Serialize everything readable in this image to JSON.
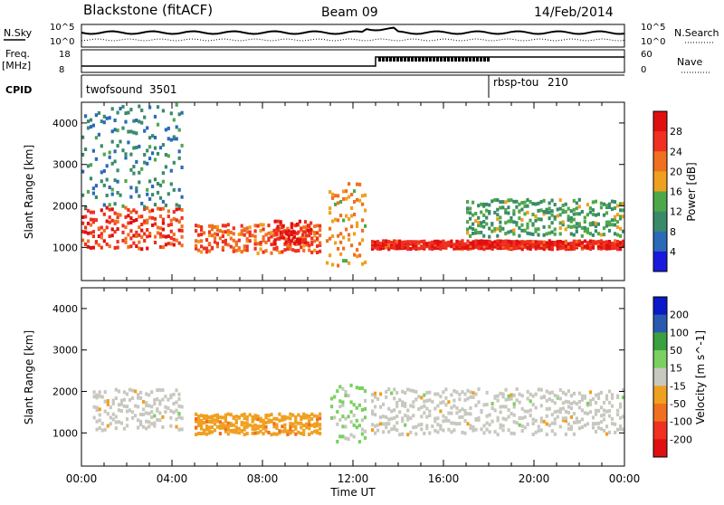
{
  "header": {
    "station": "Blackstone (fitACF)",
    "beam": "Beam 09",
    "date": "14/Feb/2014"
  },
  "summary": {
    "left_labels": {
      "nsky": "N.Sky",
      "freq": "Freq.",
      "freq_unit": "[MHz]",
      "cpid": "CPID"
    },
    "right_labels": {
      "nsearch": "N.Search",
      "nave": "Nave"
    },
    "noise_ticks": [
      "10^5",
      "10^0"
    ],
    "freq_ticks_left": [
      "18",
      "8"
    ],
    "nave_ticks_right": [
      "60",
      "0"
    ],
    "cpid_entries": [
      {
        "name": "twofsound",
        "id": "3501",
        "start_hour": 0
      },
      {
        "name": "rbsp-tou",
        "id": "210",
        "start_hour": 18
      }
    ]
  },
  "colors": {
    "power_scale": [
      "#1a1adc",
      "#2a6ab8",
      "#3a8a6a",
      "#4ea84a",
      "#f0a020",
      "#f07020",
      "#f03020",
      "#e01010"
    ],
    "velocity_scale": [
      "#0a1ac8",
      "#2a5ab0",
      "#3aa040",
      "#7ad060",
      "#c8c8c0",
      "#f0a020",
      "#f07020",
      "#f03020",
      "#e01010"
    ]
  },
  "chart_data": [
    {
      "type": "heatmap",
      "title": "",
      "xlabel": "Time UT",
      "ylabel": "Slant Range [km]",
      "x_unit": "hour UT",
      "xlim": [
        0,
        24
      ],
      "ylim": [
        200,
        4500
      ],
      "x_ticks": [
        "00:00",
        "04:00",
        "08:00",
        "12:00",
        "16:00",
        "20:00",
        "00:00"
      ],
      "y_ticks": [
        "1000",
        "2000",
        "3000",
        "4000"
      ],
      "y_tick_values": [
        1000,
        2000,
        3000,
        4000
      ],
      "colorbar": {
        "label": "Power [dB]",
        "ticks": [
          "4",
          "8",
          "12",
          "16",
          "20",
          "24",
          "28"
        ],
        "range": [
          0,
          30
        ]
      },
      "bands": [
        {
          "t0": 0.0,
          "t1": 4.5,
          "r0": 1000,
          "r1": 2000,
          "value": 24
        },
        {
          "t0": 5.0,
          "t1": 10.6,
          "r0": 900,
          "r1": 1600,
          "value": 22
        },
        {
          "t0": 8.5,
          "t1": 10.2,
          "r0": 1100,
          "r1": 1700,
          "value": 28
        },
        {
          "t0": 10.8,
          "t1": 12.6,
          "r0": 600,
          "r1": 2600,
          "value": 18
        },
        {
          "t0": 12.8,
          "t1": 24.0,
          "r0": 1000,
          "r1": 1200,
          "value": 26
        },
        {
          "t0": 17.0,
          "t1": 24.0,
          "r0": 1300,
          "r1": 2200,
          "value": 12
        },
        {
          "t0": 0.0,
          "t1": 4.5,
          "r0": 2000,
          "r1": 4500,
          "value": 8
        }
      ]
    },
    {
      "type": "heatmap",
      "title": "",
      "xlabel": "Time UT",
      "ylabel": "Slant Range [km]",
      "x_unit": "hour UT",
      "xlim": [
        0,
        24
      ],
      "ylim": [
        200,
        4500
      ],
      "x_ticks": [
        "00:00",
        "04:00",
        "08:00",
        "12:00",
        "16:00",
        "20:00",
        "00:00"
      ],
      "y_ticks": [
        "1000",
        "2000",
        "3000",
        "4000"
      ],
      "y_tick_values": [
        1000,
        2000,
        3000,
        4000
      ],
      "colorbar": {
        "label": "Velocity [m s^-1]",
        "ticks": [
          "200",
          "100",
          "50",
          "15",
          "-15",
          "-50",
          "-100",
          "-200"
        ],
        "range": [
          -250,
          250
        ]
      },
      "bands": [
        {
          "t0": 0.5,
          "t1": 4.5,
          "r0": 1100,
          "r1": 2100,
          "value": 0
        },
        {
          "t0": 5.0,
          "t1": 10.6,
          "r0": 1000,
          "r1": 1500,
          "value": -60
        },
        {
          "t0": 11.0,
          "t1": 12.6,
          "r0": 800,
          "r1": 2200,
          "value": 40
        },
        {
          "t0": 12.8,
          "t1": 24.0,
          "r0": 1000,
          "r1": 2100,
          "value": 0
        }
      ]
    }
  ]
}
